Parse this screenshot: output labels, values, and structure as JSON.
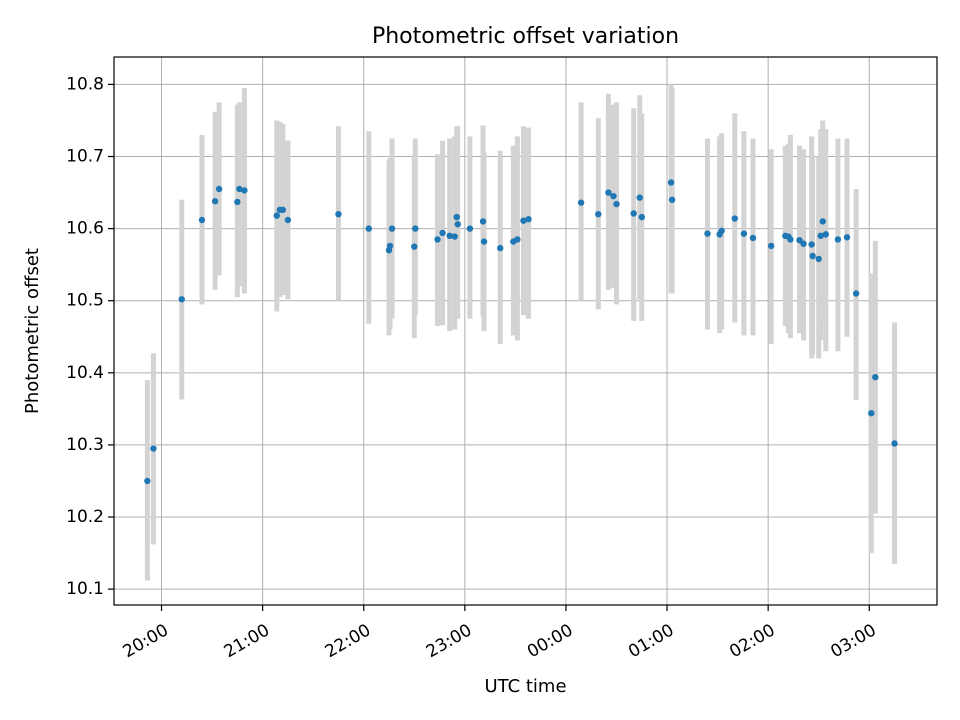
{
  "chart_data": {
    "type": "scatter",
    "title": "Photometric offset variation",
    "xlabel": "UTC time",
    "ylabel": "Photometric offset",
    "x_unit": "UTC time of night (hours after 00:00; values below 0 are the previous evening)",
    "xlim": [
      -4.47,
      3.67
    ],
    "ylim": [
      10.078,
      10.838
    ],
    "x_ticks": [
      {
        "value": -4,
        "label": "20:00"
      },
      {
        "value": -3,
        "label": "21:00"
      },
      {
        "value": -2,
        "label": "22:00"
      },
      {
        "value": -1,
        "label": "23:00"
      },
      {
        "value": 0,
        "label": "00:00"
      },
      {
        "value": 1,
        "label": "01:00"
      },
      {
        "value": 2,
        "label": "02:00"
      },
      {
        "value": 3,
        "label": "03:00"
      }
    ],
    "y_ticks": [
      {
        "value": 10.1,
        "label": "10.1"
      },
      {
        "value": 10.2,
        "label": "10.2"
      },
      {
        "value": 10.3,
        "label": "10.3"
      },
      {
        "value": 10.4,
        "label": "10.4"
      },
      {
        "value": 10.5,
        "label": "10.5"
      },
      {
        "value": 10.6,
        "label": "10.6"
      },
      {
        "value": 10.7,
        "label": "10.7"
      },
      {
        "value": 10.8,
        "label": "10.8"
      }
    ],
    "grid": true,
    "series": [
      {
        "marker_color": "#1f77b4",
        "errorbar_color": "#d3d3d3",
        "points": [
          {
            "x": -4.14,
            "y": 10.25,
            "lo": 10.112,
            "hi": 10.39
          },
          {
            "x": -4.08,
            "y": 10.295,
            "lo": 10.162,
            "hi": 10.427
          },
          {
            "x": -3.8,
            "y": 10.502,
            "lo": 10.363,
            "hi": 10.64
          },
          {
            "x": -3.6,
            "y": 10.612,
            "lo": 10.495,
            "hi": 10.73
          },
          {
            "x": -3.47,
            "y": 10.638,
            "lo": 10.515,
            "hi": 10.762
          },
          {
            "x": -3.43,
            "y": 10.655,
            "lo": 10.535,
            "hi": 10.775
          },
          {
            "x": -3.25,
            "y": 10.637,
            "lo": 10.505,
            "hi": 10.772
          },
          {
            "x": -3.23,
            "y": 10.655,
            "lo": 10.52,
            "hi": 10.775
          },
          {
            "x": -3.18,
            "y": 10.653,
            "lo": 10.51,
            "hi": 10.795
          },
          {
            "x": -2.86,
            "y": 10.618,
            "lo": 10.485,
            "hi": 10.75
          },
          {
            "x": -2.83,
            "y": 10.626,
            "lo": 10.505,
            "hi": 10.748
          },
          {
            "x": -2.8,
            "y": 10.626,
            "lo": 10.508,
            "hi": 10.745
          },
          {
            "x": -2.75,
            "y": 10.612,
            "lo": 10.502,
            "hi": 10.722
          },
          {
            "x": -2.25,
            "y": 10.62,
            "lo": 10.5,
            "hi": 10.742
          },
          {
            "x": -1.95,
            "y": 10.6,
            "lo": 10.468,
            "hi": 10.735
          },
          {
            "x": -1.75,
            "y": 10.57,
            "lo": 10.452,
            "hi": 10.695
          },
          {
            "x": -1.74,
            "y": 10.576,
            "lo": 10.46,
            "hi": 10.698
          },
          {
            "x": -1.72,
            "y": 10.6,
            "lo": 10.475,
            "hi": 10.725
          },
          {
            "x": -1.5,
            "y": 10.575,
            "lo": 10.448,
            "hi": 10.702
          },
          {
            "x": -1.49,
            "y": 10.6,
            "lo": 10.48,
            "hi": 10.725
          },
          {
            "x": -1.27,
            "y": 10.585,
            "lo": 10.465,
            "hi": 10.703
          },
          {
            "x": -1.22,
            "y": 10.594,
            "lo": 10.466,
            "hi": 10.722
          },
          {
            "x": -1.15,
            "y": 10.59,
            "lo": 10.458,
            "hi": 10.725
          },
          {
            "x": -1.1,
            "y": 10.589,
            "lo": 10.46,
            "hi": 10.728
          },
          {
            "x": -1.08,
            "y": 10.616,
            "lo": 10.49,
            "hi": 10.742
          },
          {
            "x": -1.07,
            "y": 10.606,
            "lo": 10.475,
            "hi": 10.742
          },
          {
            "x": -0.95,
            "y": 10.6,
            "lo": 10.475,
            "hi": 10.728
          },
          {
            "x": -0.82,
            "y": 10.61,
            "lo": 10.478,
            "hi": 10.743
          },
          {
            "x": -0.81,
            "y": 10.582,
            "lo": 10.458,
            "hi": 10.706
          },
          {
            "x": -0.65,
            "y": 10.573,
            "lo": 10.44,
            "hi": 10.708
          },
          {
            "x": -0.52,
            "y": 10.582,
            "lo": 10.452,
            "hi": 10.715
          },
          {
            "x": -0.48,
            "y": 10.585,
            "lo": 10.445,
            "hi": 10.728
          },
          {
            "x": -0.42,
            "y": 10.611,
            "lo": 10.48,
            "hi": 10.742
          },
          {
            "x": -0.37,
            "y": 10.613,
            "lo": 10.475,
            "hi": 10.74
          },
          {
            "x": 0.15,
            "y": 10.636,
            "lo": 10.5,
            "hi": 10.775
          },
          {
            "x": 0.32,
            "y": 10.62,
            "lo": 10.488,
            "hi": 10.753
          },
          {
            "x": 0.42,
            "y": 10.65,
            "lo": 10.515,
            "hi": 10.787
          },
          {
            "x": 0.47,
            "y": 10.645,
            "lo": 10.518,
            "hi": 10.772
          },
          {
            "x": 0.5,
            "y": 10.634,
            "lo": 10.495,
            "hi": 10.775
          },
          {
            "x": 0.67,
            "y": 10.621,
            "lo": 10.472,
            "hi": 10.767
          },
          {
            "x": 0.73,
            "y": 10.643,
            "lo": 10.502,
            "hi": 10.785
          },
          {
            "x": 0.75,
            "y": 10.616,
            "lo": 10.472,
            "hi": 10.76
          },
          {
            "x": 1.04,
            "y": 10.664,
            "lo": 10.51,
            "hi": 10.8
          },
          {
            "x": 1.05,
            "y": 10.64,
            "lo": 10.51,
            "hi": 10.795
          },
          {
            "x": 1.4,
            "y": 10.593,
            "lo": 10.46,
            "hi": 10.725
          },
          {
            "x": 1.52,
            "y": 10.592,
            "lo": 10.455,
            "hi": 10.728
          },
          {
            "x": 1.54,
            "y": 10.597,
            "lo": 10.46,
            "hi": 10.732
          },
          {
            "x": 1.67,
            "y": 10.614,
            "lo": 10.47,
            "hi": 10.76
          },
          {
            "x": 1.76,
            "y": 10.593,
            "lo": 10.452,
            "hi": 10.735
          },
          {
            "x": 1.85,
            "y": 10.587,
            "lo": 10.452,
            "hi": 10.725
          },
          {
            "x": 2.03,
            "y": 10.576,
            "lo": 10.44,
            "hi": 10.71
          },
          {
            "x": 2.17,
            "y": 10.59,
            "lo": 10.465,
            "hi": 10.715
          },
          {
            "x": 2.2,
            "y": 10.589,
            "lo": 10.455,
            "hi": 10.718
          },
          {
            "x": 2.22,
            "y": 10.585,
            "lo": 10.448,
            "hi": 10.73
          },
          {
            "x": 2.31,
            "y": 10.584,
            "lo": 10.455,
            "hi": 10.715
          },
          {
            "x": 2.35,
            "y": 10.579,
            "lo": 10.445,
            "hi": 10.71
          },
          {
            "x": 2.43,
            "y": 10.578,
            "lo": 10.42,
            "hi": 10.728
          },
          {
            "x": 2.44,
            "y": 10.562,
            "lo": 10.425,
            "hi": 10.7
          },
          {
            "x": 2.5,
            "y": 10.558,
            "lo": 10.42,
            "hi": 10.7
          },
          {
            "x": 2.52,
            "y": 10.59,
            "lo": 10.445,
            "hi": 10.738
          },
          {
            "x": 2.54,
            "y": 10.61,
            "lo": 10.47,
            "hi": 10.75
          },
          {
            "x": 2.57,
            "y": 10.592,
            "lo": 10.43,
            "hi": 10.738
          },
          {
            "x": 2.69,
            "y": 10.585,
            "lo": 10.43,
            "hi": 10.725
          },
          {
            "x": 2.78,
            "y": 10.588,
            "lo": 10.45,
            "hi": 10.725
          },
          {
            "x": 2.87,
            "y": 10.51,
            "lo": 10.362,
            "hi": 10.655
          },
          {
            "x": 3.02,
            "y": 10.344,
            "lo": 10.15,
            "hi": 10.538
          },
          {
            "x": 3.06,
            "y": 10.394,
            "lo": 10.205,
            "hi": 10.583
          },
          {
            "x": 3.25,
            "y": 10.302,
            "lo": 10.135,
            "hi": 10.47
          }
        ]
      }
    ]
  }
}
